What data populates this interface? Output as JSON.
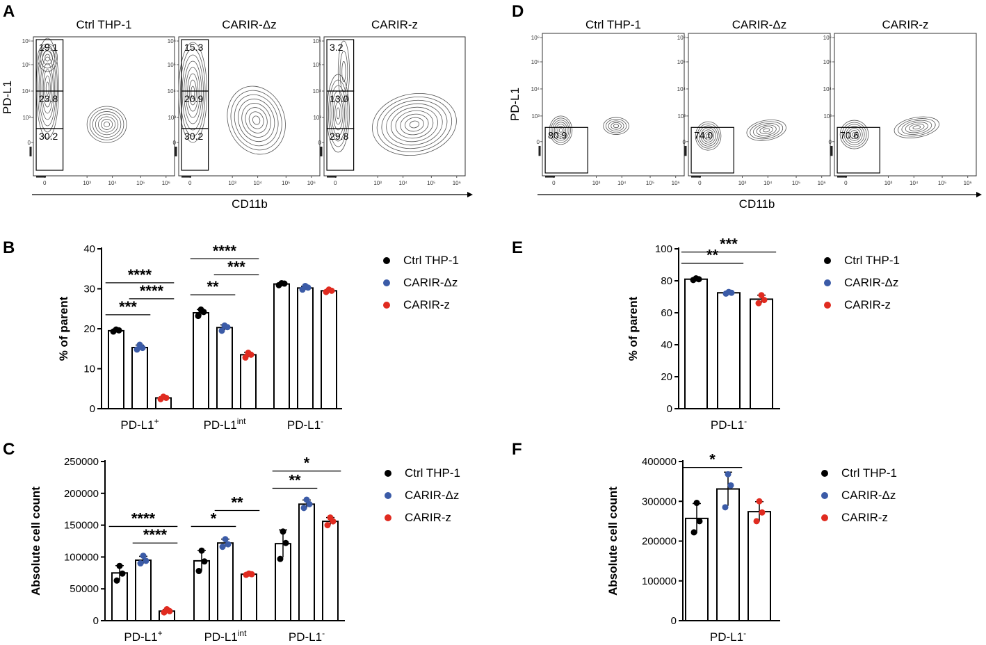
{
  "chart_data": [
    {
      "panel": "A",
      "type": "flow-contour",
      "samples": [
        "Ctrl THP-1",
        "CARIR-Δz",
        "CARIR-z"
      ],
      "xlabel": "CD11b",
      "ylabel": "PD-L1",
      "x_ticks": [
        "0",
        "10³",
        "10⁴",
        "10⁵",
        "10⁶"
      ],
      "y_ticks": [
        "0",
        "10³",
        "10⁴",
        "10⁵",
        "10⁶"
      ],
      "gates": [
        [
          "19.1",
          "23.8",
          "30.2"
        ],
        [
          "15.3",
          "20.9",
          "30.2"
        ],
        [
          "3.2",
          "13.0",
          "29.8"
        ]
      ]
    },
    {
      "panel": "D",
      "type": "flow-contour",
      "samples": [
        "Ctrl THP-1",
        "CARIR-Δz",
        "CARIR-z"
      ],
      "xlabel": "CD11b",
      "ylabel": "PD-L1",
      "x_ticks": [
        "0",
        "10³",
        "10⁴",
        "10⁵",
        "10⁶"
      ],
      "y_ticks": [
        "0",
        "10³",
        "10⁴",
        "10⁵",
        "10⁶"
      ],
      "gates": [
        [
          "80.9"
        ],
        [
          "74.0"
        ],
        [
          "70.6"
        ]
      ]
    },
    {
      "panel": "B",
      "type": "bar",
      "ylabel": "% of parent",
      "ylim": [
        0,
        40
      ],
      "yticks": [
        "0",
        "10",
        "20",
        "30",
        "40"
      ],
      "groups": [
        {
          "base": "PD-L1",
          "sup": "+"
        },
        {
          "base": "PD-L1",
          "sup": "int"
        },
        {
          "base": "PD-L1",
          "sup": "-"
        }
      ],
      "series": [
        {
          "name": "Ctrl THP-1",
          "values": [
            19.5,
            24.0,
            31.2
          ],
          "points": [
            [
              19.3,
              19.6,
              19.8
            ],
            [
              23.2,
              24.2,
              24.8
            ],
            [
              30.9,
              31.3,
              31.4
            ]
          ]
        },
        {
          "name": "CARIR-Δz",
          "values": [
            15.3,
            20.3,
            30.2
          ],
          "points": [
            [
              14.8,
              15.2,
              16.0
            ],
            [
              19.5,
              20.4,
              20.8
            ],
            [
              29.8,
              30.3,
              30.7
            ]
          ]
        },
        {
          "name": "CARIR-z",
          "values": [
            2.7,
            13.5,
            29.5
          ],
          "points": [
            [
              2.4,
              2.7,
              3.0
            ],
            [
              12.8,
              13.5,
              14.0
            ],
            [
              29.2,
              29.5,
              29.8
            ]
          ]
        }
      ],
      "significance": [
        {
          "group": 0,
          "from": 0,
          "to": 1,
          "label": "***",
          "y": 23.5
        },
        {
          "group": 0,
          "from": 1,
          "to": 2,
          "label": "****",
          "y": 27.5
        },
        {
          "group": 0,
          "from": 0,
          "to": 2,
          "label": "****",
          "y": 31.5
        },
        {
          "group": 1,
          "from": 0,
          "to": 1,
          "label": "**",
          "y": 28.5
        },
        {
          "group": 1,
          "from": 1,
          "to": 2,
          "label": "***",
          "y": 33.5
        },
        {
          "group": 1,
          "from": 0,
          "to": 2,
          "label": "****",
          "y": 37.5
        }
      ]
    },
    {
      "panel": "C",
      "type": "bar",
      "ylabel": "Absolute cell count",
      "ylim": [
        0,
        250000
      ],
      "yticks": [
        "0",
        "50000",
        "100000",
        "150000",
        "200000",
        "250000"
      ],
      "groups": [
        {
          "base": "PD-L1",
          "sup": "+"
        },
        {
          "base": "PD-L1",
          "sup": "int"
        },
        {
          "base": "PD-L1",
          "sup": "-"
        }
      ],
      "series": [
        {
          "name": "Ctrl THP-1",
          "values": [
            75000,
            94000,
            121000
          ],
          "points": [
            [
              63000,
              74000,
              86000
            ],
            [
              78000,
              93000,
              110000
            ],
            [
              97000,
              122000,
              140000
            ]
          ]
        },
        {
          "name": "CARIR-Δz",
          "values": [
            95000,
            122000,
            183000
          ],
          "points": [
            [
              90000,
              94000,
              102000
            ],
            [
              116000,
              120000,
              128000
            ],
            [
              177000,
              183000,
              190000
            ]
          ]
        },
        {
          "name": "CARIR-z",
          "values": [
            15000,
            73000,
            156000
          ],
          "points": [
            [
              13000,
              15000,
              18000
            ],
            [
              72000,
              73000,
              74000
            ],
            [
              150000,
              156000,
              162000
            ]
          ]
        }
      ],
      "significance": [
        {
          "group": 0,
          "from": 1,
          "to": 2,
          "label": "****",
          "y": 122000
        },
        {
          "group": 0,
          "from": 0,
          "to": 2,
          "label": "****",
          "y": 148000
        },
        {
          "group": 1,
          "from": 0,
          "to": 1,
          "label": "*",
          "y": 148000
        },
        {
          "group": 1,
          "from": 1,
          "to": 2,
          "label": "**",
          "y": 173000
        },
        {
          "group": 2,
          "from": 0,
          "to": 1,
          "label": "**",
          "y": 208000
        },
        {
          "group": 2,
          "from": 0,
          "to": 2,
          "label": "*",
          "y": 235000
        }
      ]
    },
    {
      "panel": "E",
      "type": "bar",
      "ylabel": "% of parent",
      "ylim": [
        0,
        100
      ],
      "yticks": [
        "0",
        "20",
        "40",
        "60",
        "80",
        "100"
      ],
      "groups": [
        {
          "base": "PD-L1",
          "sup": "-"
        }
      ],
      "series": [
        {
          "name": "Ctrl THP-1",
          "values": [
            81
          ],
          "points": [
            [
              80.5,
              81.0,
              81.5
            ]
          ]
        },
        {
          "name": "CARIR-Δz",
          "values": [
            72.5
          ],
          "points": [
            [
              72.0,
              72.5,
              73.0
            ]
          ]
        },
        {
          "name": "CARIR-z",
          "values": [
            68.5
          ],
          "points": [
            [
              66.0,
              68.0,
              71.0
            ]
          ]
        }
      ],
      "significance": [
        {
          "group": 0,
          "from": 0,
          "to": 1,
          "label": "**",
          "y": 91
        },
        {
          "group": 0,
          "from": 0,
          "to": 2,
          "label": "***",
          "y": 98
        }
      ]
    },
    {
      "panel": "F",
      "type": "bar",
      "ylabel": "Absolute cell count",
      "ylim": [
        0,
        400000
      ],
      "yticks": [
        "0",
        "100000",
        "200000",
        "300000",
        "400000"
      ],
      "groups": [
        {
          "base": "PD-L1",
          "sup": "-"
        }
      ],
      "series": [
        {
          "name": "Ctrl THP-1",
          "values": [
            257000
          ],
          "points": [
            [
              222000,
              250000,
              296000
            ]
          ]
        },
        {
          "name": "CARIR-Δz",
          "values": [
            331000
          ],
          "points": [
            [
              285000,
              340000,
              368000
            ]
          ]
        },
        {
          "name": "CARIR-z",
          "values": [
            274000
          ],
          "points": [
            [
              250000,
              272000,
              300000
            ]
          ]
        }
      ],
      "significance": [
        {
          "group": 0,
          "from": 0,
          "to": 1,
          "label": "*",
          "y": 385000
        }
      ]
    }
  ],
  "panel_letters": [
    "A",
    "D",
    "B",
    "E",
    "C",
    "F"
  ],
  "legend": [
    "Ctrl THP-1",
    "CARIR-Δz",
    "CARIR-z"
  ],
  "colors": {
    "ctrl": "#000000",
    "dz": "#3b5ba7",
    "z": "#e02b20",
    "contour": "#555555"
  }
}
